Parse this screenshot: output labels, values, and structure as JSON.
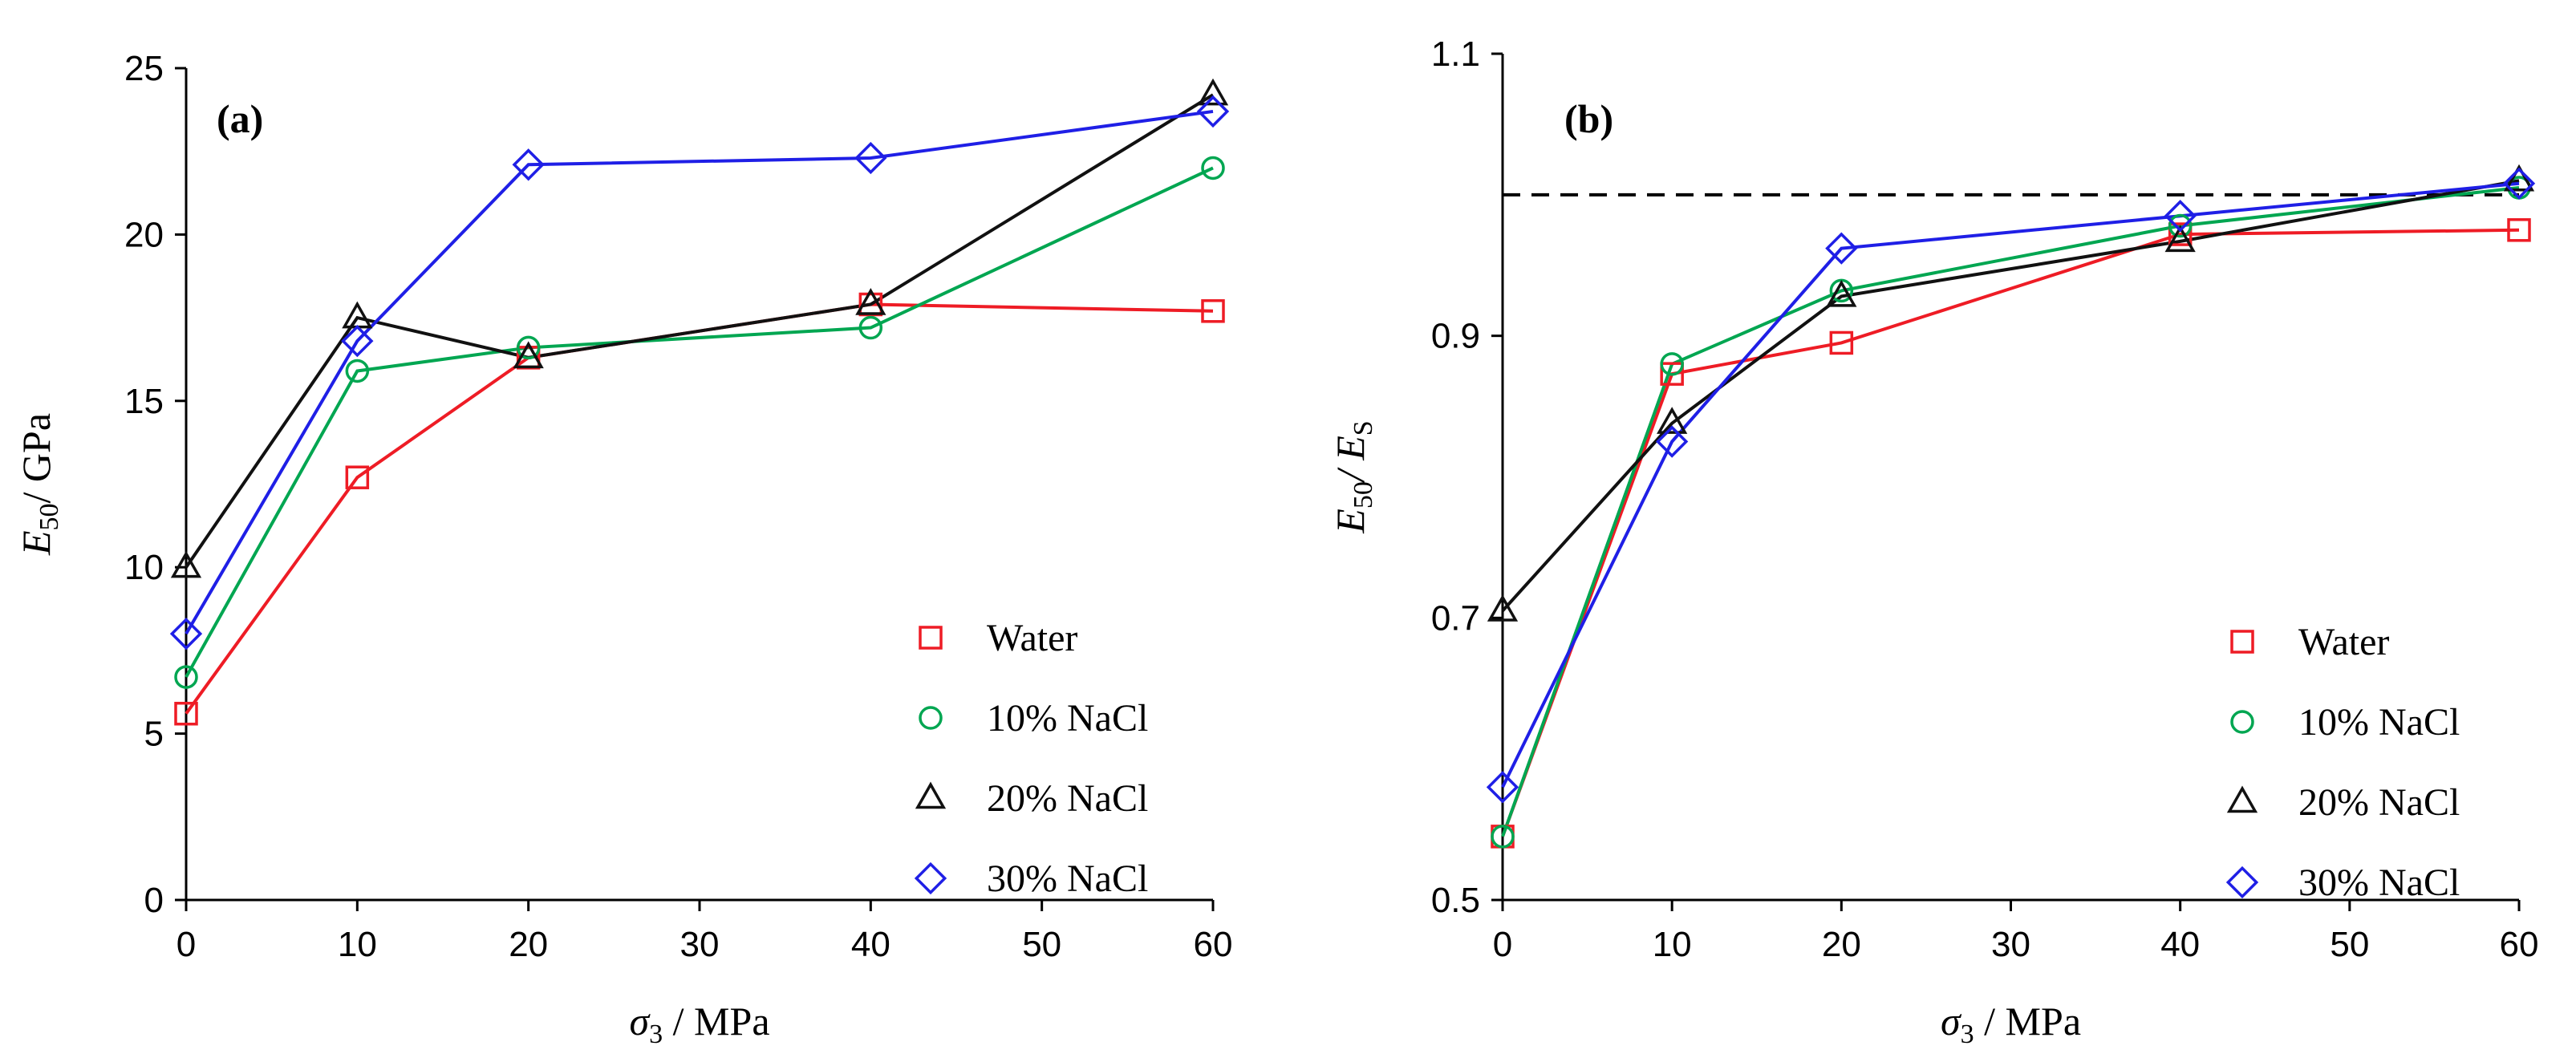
{
  "chart_data": [
    {
      "type": "line",
      "panel_label": "(a)",
      "x": [
        0,
        10,
        20,
        40,
        60
      ],
      "x_tick_labels": [
        "0",
        "10",
        "20",
        "30",
        "40",
        "50",
        "60"
      ],
      "y_tick_labels": [
        "0",
        "5",
        "10",
        "15",
        "20",
        "25"
      ],
      "xlim": [
        0,
        60
      ],
      "ylim": [
        0,
        25
      ],
      "xlabel": {
        "main": "σ",
        "sub": "3",
        "rest": " / MPa"
      },
      "ylabel": {
        "main": "E",
        "sub": "50",
        "rest": "/ GPa"
      },
      "grid": false,
      "legend_position": "bottom-right",
      "series": [
        {
          "name": "Water",
          "color": "#ee1c25",
          "marker": "square",
          "values": [
            5.6,
            12.7,
            16.3,
            17.9,
            17.7
          ]
        },
        {
          "name": "10% NaCl",
          "color": "#00a651",
          "marker": "circle",
          "values": [
            6.7,
            15.9,
            16.6,
            17.2,
            22.0
          ]
        },
        {
          "name": "20% NaCl",
          "color": "#111111",
          "marker": "triangle",
          "values": [
            10.0,
            17.5,
            16.3,
            17.9,
            24.2
          ]
        },
        {
          "name": "30% NaCl",
          "color": "#1f1fe6",
          "marker": "diamond",
          "values": [
            8.0,
            16.8,
            22.1,
            22.3,
            23.7
          ]
        }
      ]
    },
    {
      "type": "line",
      "panel_label": "(b)",
      "x": [
        0,
        10,
        20,
        40,
        60
      ],
      "x_tick_labels": [
        "0",
        "10",
        "20",
        "30",
        "40",
        "50",
        "60"
      ],
      "y_tick_labels": [
        "0.5",
        "0.7",
        "0.9",
        "1.1"
      ],
      "xlim": [
        0,
        60
      ],
      "ylim": [
        0.5,
        1.1
      ],
      "reference_line": 1.0,
      "xlabel": {
        "main": "σ",
        "sub": "3",
        "rest": " / MPa"
      },
      "ylabel": {
        "main": "E",
        "sub": "50",
        "mid": "/ E",
        "sub2": "S"
      },
      "grid": false,
      "legend_position": "bottom-right",
      "series": [
        {
          "name": "Water",
          "color": "#ee1c25",
          "marker": "square",
          "values": [
            0.545,
            0.873,
            0.895,
            0.972,
            0.975
          ]
        },
        {
          "name": "10% NaCl",
          "color": "#00a651",
          "marker": "circle",
          "values": [
            0.545,
            0.88,
            0.932,
            0.978,
            1.005
          ]
        },
        {
          "name": "20% NaCl",
          "color": "#111111",
          "marker": "triangle",
          "values": [
            0.705,
            0.838,
            0.928,
            0.967,
            1.01
          ]
        },
        {
          "name": "30% NaCl",
          "color": "#1f1fe6",
          "marker": "diamond",
          "values": [
            0.58,
            0.825,
            0.962,
            0.985,
            1.008
          ]
        }
      ]
    }
  ]
}
